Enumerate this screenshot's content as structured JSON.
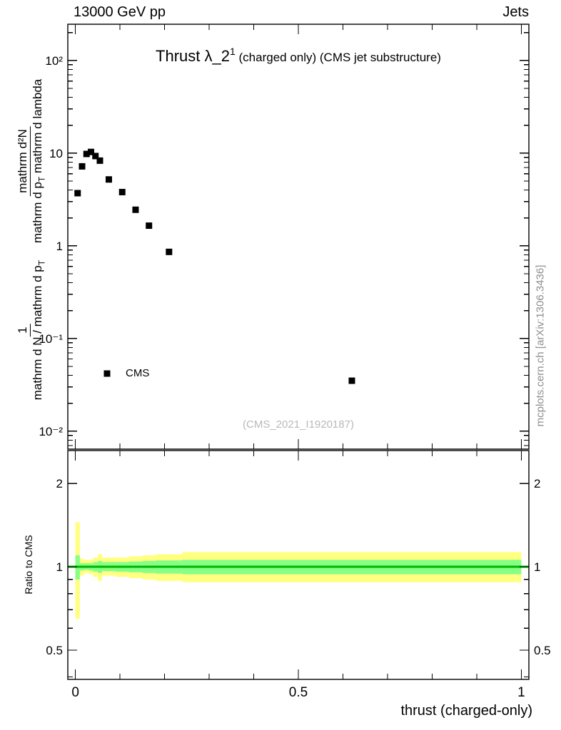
{
  "header": {
    "left": "13000 GeV pp",
    "right": "Jets"
  },
  "title": {
    "main": "Thrust λ_2",
    "sup": "1",
    "rest": " (charged only) (CMS jet substructure)"
  },
  "watermark": "(CMS_2021_I1920187)",
  "side_note": "mcplots.cern.ch [arXiv:1306.3436]",
  "legend": {
    "label": "CMS"
  },
  "labels": {
    "x_axis": "thrust (charged-only)",
    "ratio_y_axis": "Ratio to CMS",
    "y_prefix_num": "1",
    "y_prefix_den": "mathrm d N / mathrm d p_T",
    "y_num": "mathrm d²N",
    "y_den": "mathrm d p_T mathrm d lambda"
  },
  "chart_data": {
    "type": "scatter",
    "title": "Thrust λ_2^1 (charged only) (CMS jet substructure)",
    "xlabel": "thrust (charged-only)",
    "ylabel": "1/(mathrm d N/mathrm d p_T) mathrm d²N/(mathrm d p_T mathrm d lambda)",
    "ratio_ylabel": "Ratio to CMS",
    "x_range": [
      -0.017,
      1.017
    ],
    "y_scale": "log",
    "y_range": [
      0.0064,
      246
    ],
    "x_ticks": [
      {
        "v": 0,
        "label": "0"
      },
      {
        "v": 0.5,
        "label": "0.5"
      },
      {
        "v": 1,
        "label": "1"
      }
    ],
    "x_minor_step": 0.1,
    "y_ticks": [
      {
        "v": 100,
        "label": "10²"
      },
      {
        "v": 10,
        "label": "10"
      },
      {
        "v": 1,
        "label": "1"
      },
      {
        "v": 0.1,
        "label": "10⁻¹"
      },
      {
        "v": 0.01,
        "label": "10⁻²"
      }
    ],
    "series": [
      {
        "name": "CMS",
        "marker": "filled-square",
        "color": "#000000",
        "points": [
          [
            0.005,
            3.7
          ],
          [
            0.015,
            7.2
          ],
          [
            0.025,
            9.8
          ],
          [
            0.035,
            10.3
          ],
          [
            0.045,
            9.3
          ],
          [
            0.055,
            8.3
          ],
          [
            0.075,
            5.2
          ],
          [
            0.105,
            3.8
          ],
          [
            0.135,
            2.45
          ],
          [
            0.165,
            1.65
          ],
          [
            0.21,
            0.86
          ],
          [
            0.62,
            0.035
          ]
        ]
      }
    ],
    "ratio_panel": {
      "y_scale": "log",
      "y_range": [
        0.392,
        2.63
      ],
      "y_ticks": [
        {
          "v": 0.5,
          "label": "0.5"
        },
        {
          "v": 1,
          "label": "1"
        },
        {
          "v": 2,
          "label": "2"
        }
      ],
      "reference_line_y": 1,
      "bands": {
        "yellow": [
          [
            0.0,
            0.01,
            0.65,
            1.45
          ],
          [
            0.01,
            0.02,
            0.93,
            1.07
          ],
          [
            0.02,
            0.03,
            0.95,
            1.06
          ],
          [
            0.03,
            0.04,
            0.94,
            1.06
          ],
          [
            0.04,
            0.05,
            0.92,
            1.08
          ],
          [
            0.05,
            0.06,
            0.89,
            1.11
          ],
          [
            0.06,
            0.09,
            0.93,
            1.08
          ],
          [
            0.09,
            0.12,
            0.92,
            1.08
          ],
          [
            0.12,
            0.15,
            0.91,
            1.09
          ],
          [
            0.15,
            0.18,
            0.9,
            1.1
          ],
          [
            0.18,
            0.24,
            0.89,
            1.11
          ],
          [
            0.24,
            1.0,
            0.88,
            1.13
          ]
        ],
        "green": [
          [
            0.0,
            0.01,
            0.9,
            1.1
          ],
          [
            0.01,
            0.02,
            0.97,
            1.03
          ],
          [
            0.02,
            0.03,
            0.975,
            1.03
          ],
          [
            0.03,
            0.04,
            0.97,
            1.03
          ],
          [
            0.04,
            0.05,
            0.96,
            1.04
          ],
          [
            0.05,
            0.06,
            0.95,
            1.05
          ],
          [
            0.06,
            0.09,
            0.965,
            1.04
          ],
          [
            0.09,
            0.12,
            0.96,
            1.04
          ],
          [
            0.12,
            0.15,
            0.955,
            1.045
          ],
          [
            0.15,
            0.18,
            0.95,
            1.05
          ],
          [
            0.18,
            0.24,
            0.945,
            1.055
          ],
          [
            0.24,
            1.0,
            0.94,
            1.06
          ]
        ]
      }
    },
    "colors": {
      "yellow": "#ffff80",
      "green": "#86ff86",
      "ratio_line": "#00b400",
      "marker": "#000000",
      "watermark": "#b9b9b9",
      "side_note": "#8f8f8f"
    }
  }
}
